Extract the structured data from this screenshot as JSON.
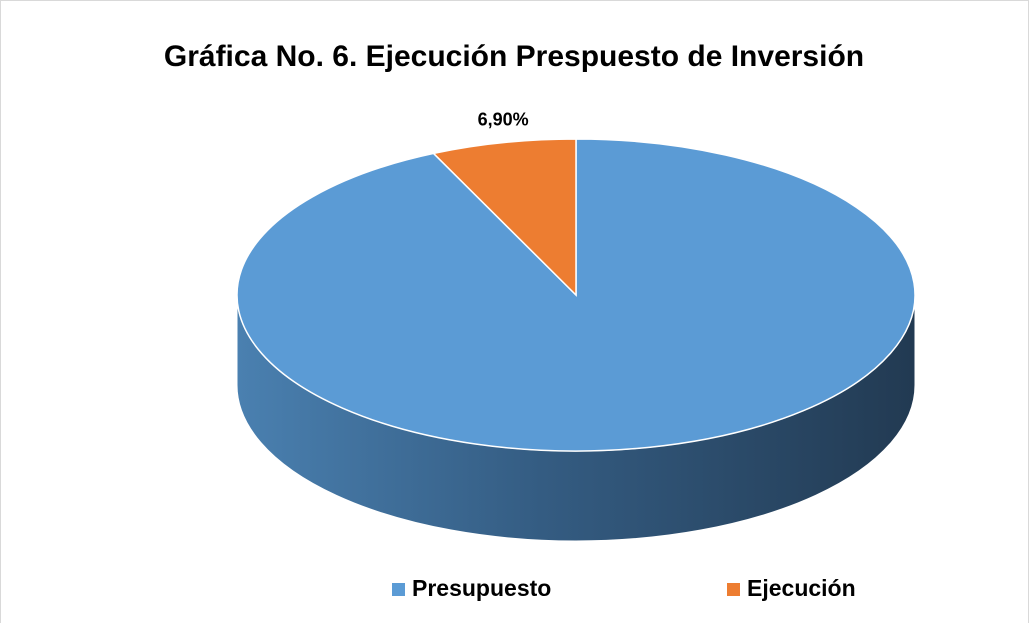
{
  "chart_data": {
    "type": "pie",
    "title": "Gráfica No. 6. Ejecución Prespuesto de Inversión",
    "categories": [
      "Presupuesto",
      "Ejecución"
    ],
    "values": [
      93.1,
      6.9
    ],
    "value_labels": [
      null,
      "6,90%"
    ],
    "colors": [
      "#5b9bd5",
      "#ed7d31"
    ],
    "legend": "bottom"
  }
}
